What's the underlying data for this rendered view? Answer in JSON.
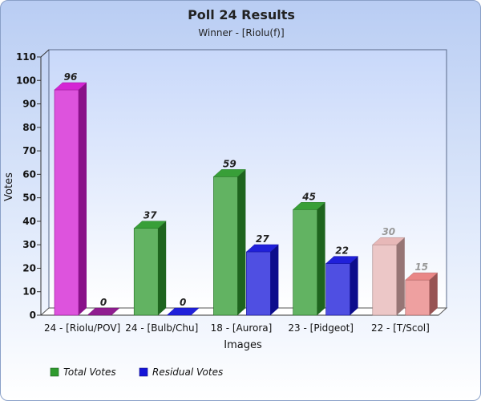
{
  "chart_data": {
    "type": "bar",
    "title": "Poll 24 Results",
    "subtitle": "Winner - [Riolu(f)]",
    "xlabel": "Images",
    "ylabel": "Votes",
    "ylim": [
      0,
      110
    ],
    "yticks": [
      0,
      10,
      20,
      30,
      40,
      50,
      60,
      70,
      80,
      90,
      100,
      110
    ],
    "categories": [
      "24 - [Riolu/POV]",
      "24 - [Bulb/Chu]",
      "18 -  [Aurora]",
      "23 -  [Pidgeot]",
      "22 -  [T/Scol]"
    ],
    "series": [
      {
        "name": "Total Votes",
        "values": [
          96,
          37,
          59,
          45,
          30
        ]
      },
      {
        "name": "Residual Votes",
        "values": [
          0,
          0,
          27,
          22,
          15
        ]
      }
    ],
    "legend_position": "bottom-left",
    "grid": false,
    "bar_colors": {
      "total": [
        "#d21ad2",
        "#2e9a2e",
        "#2e9a2e",
        "#2e9a2e",
        "#e6b4b4"
      ],
      "residual": [
        "#8a118a",
        "#1414d8",
        "#1414d8",
        "#1414d8",
        "#e88080"
      ]
    },
    "label_colors": {
      "total": [
        "#222222",
        "#222222",
        "#222222",
        "#222222",
        "#999999"
      ],
      "residual": [
        "#222222",
        "#222222",
        "#222222",
        "#222222",
        "#999999"
      ]
    },
    "legend_colors": [
      "#2e9a2e",
      "#1414d8"
    ]
  }
}
